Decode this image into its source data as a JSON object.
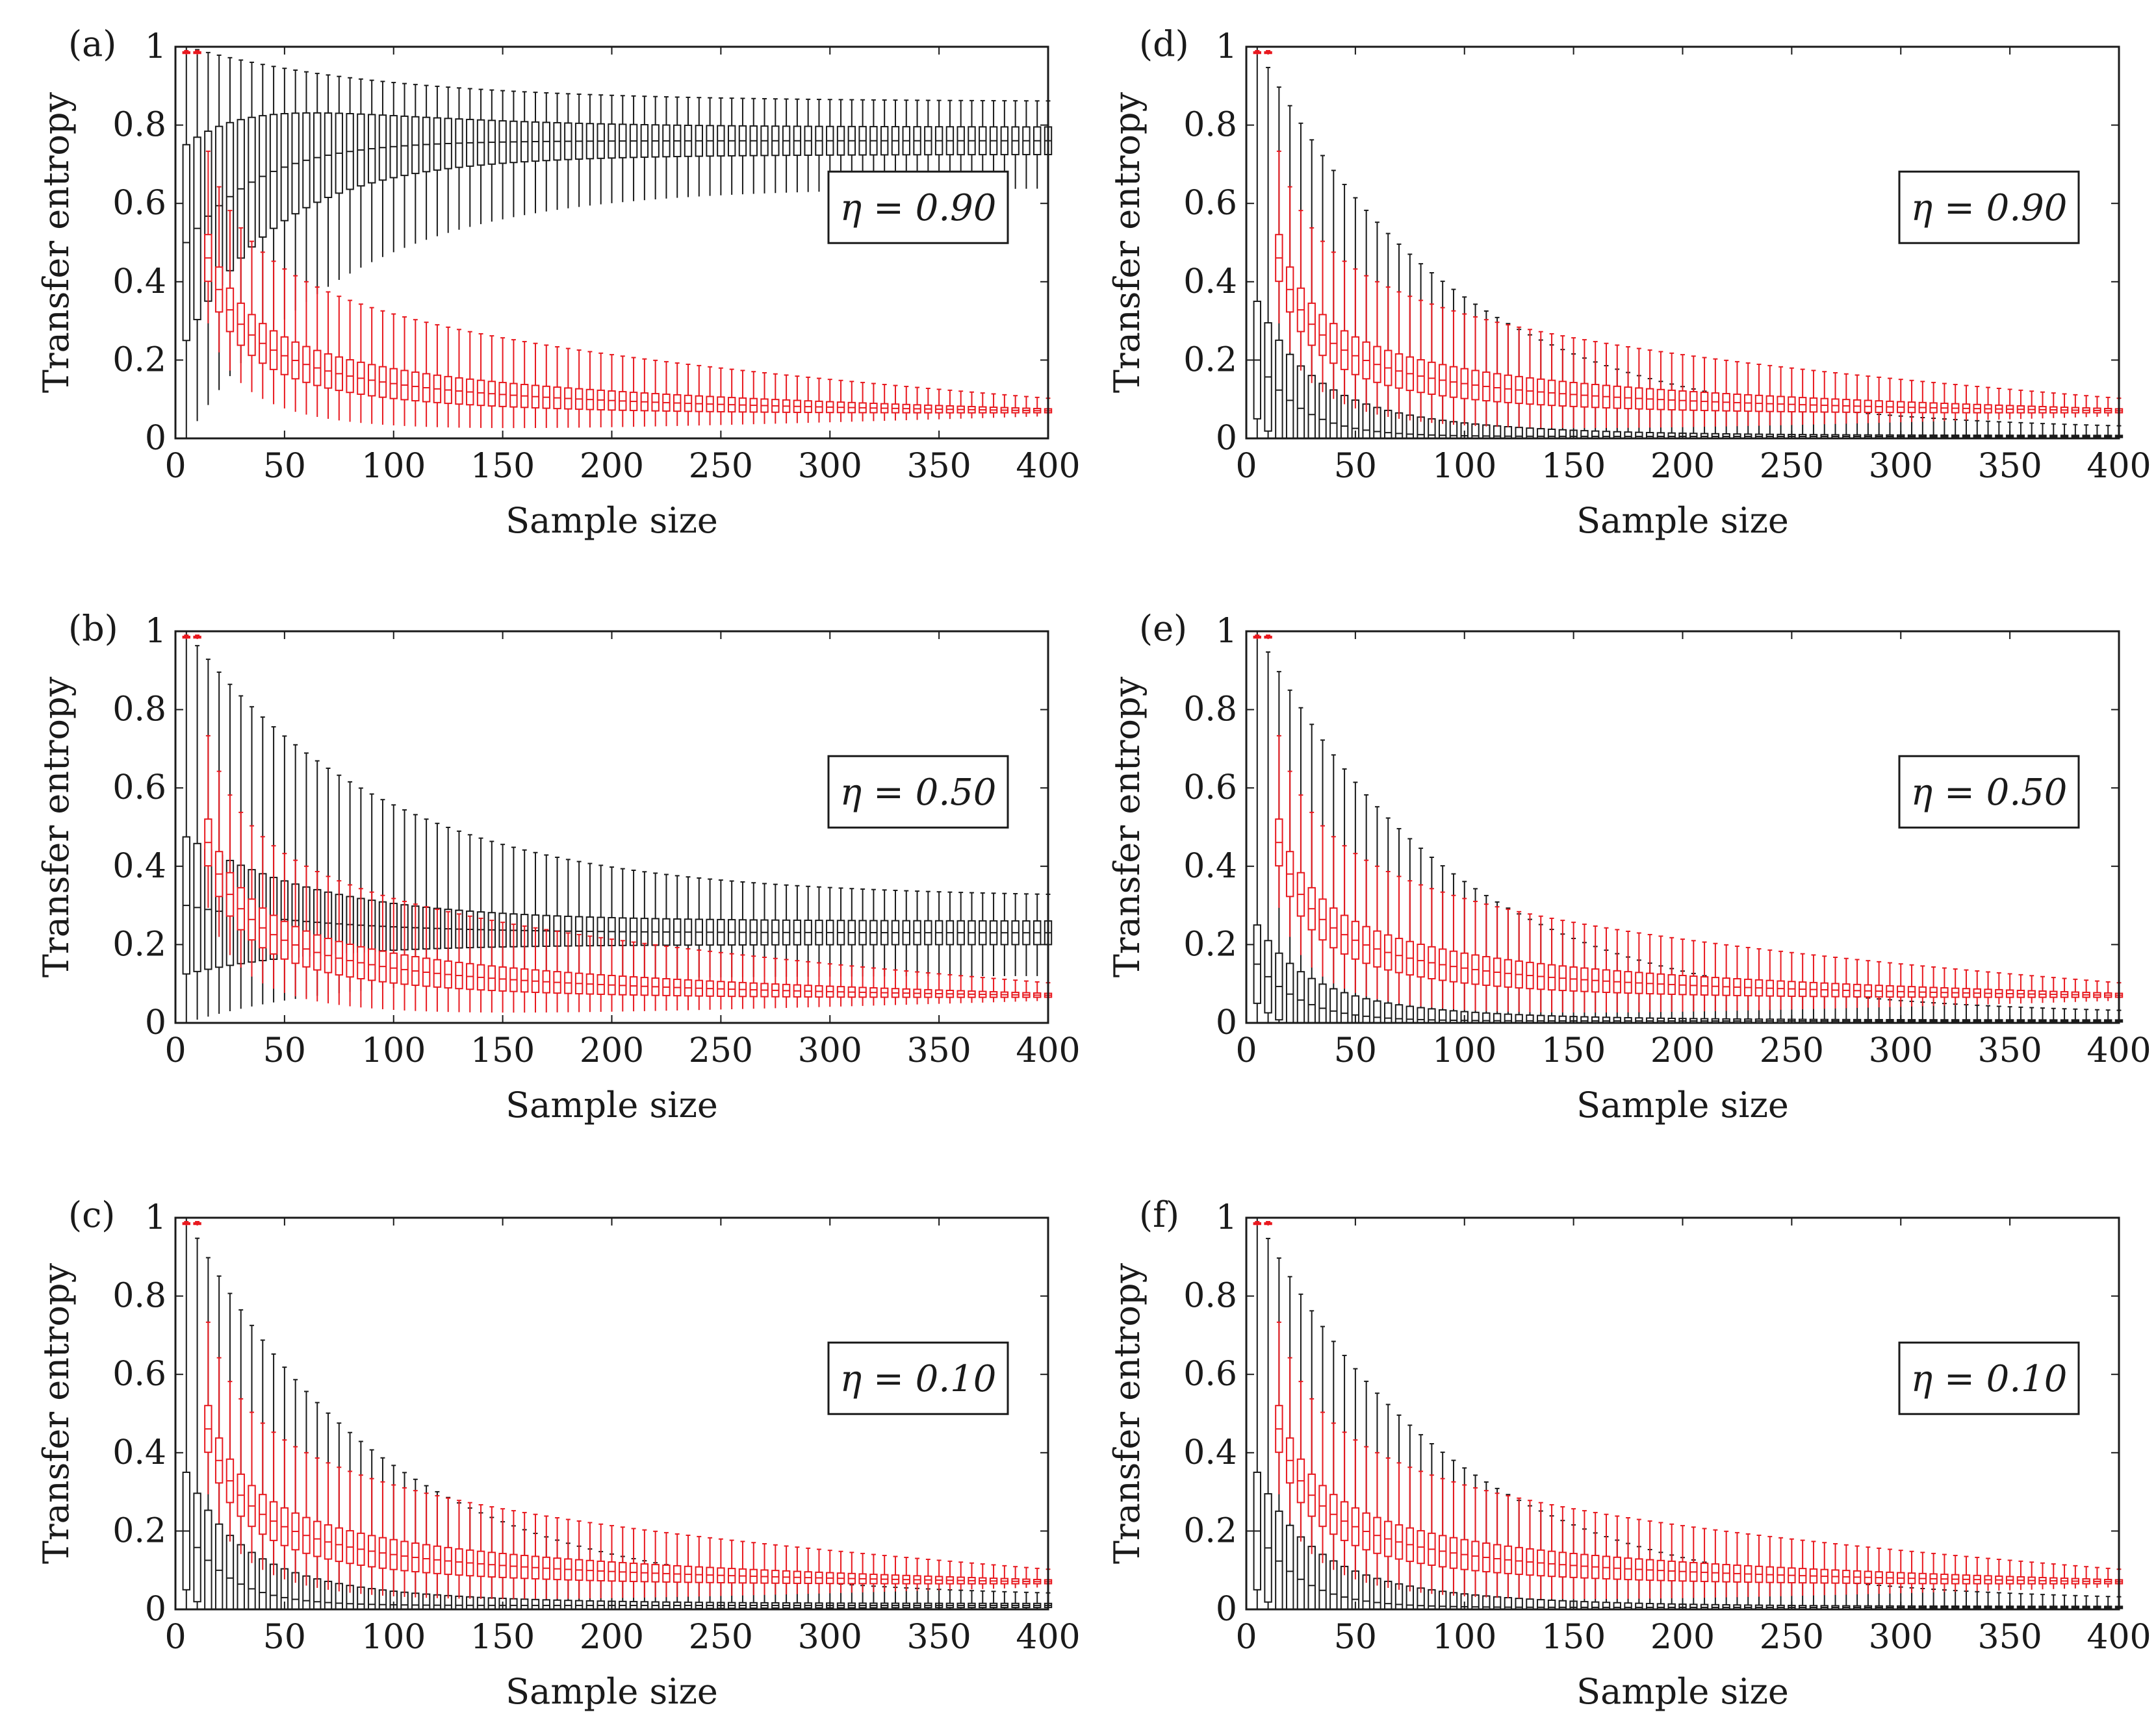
{
  "figure": {
    "colors": {
      "black_series": "#1a1a1a",
      "red_series": "#e8191f",
      "frame": "#1a1a1a"
    },
    "x_axis_label": "Sample size",
    "y_axis_label": "Transfer entropy",
    "x_tick_labels": [
      "0",
      "50",
      "100",
      "150",
      "200",
      "250",
      "300",
      "350",
      "400"
    ],
    "y_tick_labels": [
      "0",
      "0.2",
      "0.4",
      "0.6",
      "0.8",
      "1"
    ]
  },
  "chart_data": [
    {
      "type": "box",
      "panel": "(a)",
      "annotation": "η = 0.90",
      "eta": 0.9,
      "xlabel": "Sample size",
      "ylabel": "Transfer entropy",
      "xlim": [
        0,
        400
      ],
      "ylim": [
        0,
        1
      ],
      "x_sample_sizes": {
        "start": 5,
        "end": 400,
        "step": 5
      },
      "series": [
        {
          "name": "black",
          "color": "#1a1a1a",
          "median_start": 0.5,
          "median_asymptote": 0.76,
          "decay_rate": 0.15,
          "iqr_width_start": 0.5,
          "iqr_width_end": 0.07,
          "whisker_low_start": 0.0,
          "whisker_low_end": 0.64,
          "whisker_high_end": 0.86
        },
        {
          "name": "red",
          "color": "#e8191f",
          "median_start": 0.98,
          "median_end": 0.03,
          "iqr_width_start": 0.14,
          "iqr_width_end": 0.01,
          "whisker_high_start": 1.0,
          "whisker_high_end": 0.045
        }
      ]
    },
    {
      "type": "box",
      "panel": "(b)",
      "annotation": "η = 0.50",
      "eta": 0.5,
      "xlabel": "Sample size",
      "ylabel": "Transfer entropy",
      "xlim": [
        0,
        400
      ],
      "ylim": [
        0,
        1
      ],
      "x_sample_sizes": {
        "start": 5,
        "end": 400,
        "step": 5
      },
      "series": [
        {
          "name": "black",
          "color": "#1a1a1a",
          "median_start": 0.3,
          "median_asymptote": 0.23,
          "decay_rate": 0.08,
          "iqr_width_start": 0.35,
          "iqr_width_end": 0.06,
          "whisker_low_start": 0.0,
          "whisker_low_end": 0.12,
          "whisker_high_end": 0.32
        },
        {
          "name": "red",
          "color": "#e8191f",
          "median_start": 0.98,
          "median_end": 0.03,
          "iqr_width_start": 0.14,
          "iqr_width_end": 0.01,
          "whisker_high_start": 1.0,
          "whisker_high_end": 0.045
        }
      ]
    },
    {
      "type": "box",
      "panel": "(c)",
      "annotation": "η = 0.10",
      "eta": 0.1,
      "xlabel": "Sample size",
      "ylabel": "Transfer entropy",
      "xlim": [
        0,
        400
      ],
      "ylim": [
        0,
        1
      ],
      "x_sample_sizes": {
        "start": 5,
        "end": 400,
        "step": 5
      },
      "series": [
        {
          "name": "black",
          "color": "#1a1a1a",
          "median_start": 0.2,
          "median_asymptote": 0.01,
          "decay_rate": 0.25,
          "iqr_width_start": 0.3,
          "iqr_width_end": 0.01,
          "whisker_low_start": 0.0,
          "whisker_low_end": 0.0,
          "whisker_high_end": 0.03
        },
        {
          "name": "red",
          "color": "#e8191f",
          "median_start": 0.98,
          "median_end": 0.03,
          "iqr_width_start": 0.14,
          "iqr_width_end": 0.01,
          "whisker_high_start": 1.0,
          "whisker_high_end": 0.045
        }
      ]
    },
    {
      "type": "box",
      "panel": "(d)",
      "annotation": "η = 0.90",
      "eta": 0.9,
      "xlabel": "Sample size",
      "ylabel": "Transfer entropy",
      "xlim": [
        0,
        400
      ],
      "ylim": [
        0,
        1
      ],
      "x_sample_sizes": {
        "start": 5,
        "end": 400,
        "step": 5
      },
      "series": [
        {
          "name": "black",
          "color": "#1a1a1a",
          "median_start": 0.2,
          "median_asymptote": 0.005,
          "decay_rate": 0.25,
          "iqr_width_start": 0.3,
          "iqr_width_end": 0.005,
          "whisker_low_start": 0.0,
          "whisker_low_end": 0.0,
          "whisker_high_end": 0.02
        },
        {
          "name": "red",
          "color": "#e8191f",
          "median_start": 0.98,
          "median_end": 0.03,
          "iqr_width_start": 0.14,
          "iqr_width_end": 0.01,
          "whisker_high_start": 1.0,
          "whisker_high_end": 0.045
        }
      ]
    },
    {
      "type": "box",
      "panel": "(e)",
      "annotation": "η = 0.50",
      "eta": 0.5,
      "xlabel": "Sample size",
      "ylabel": "Transfer entropy",
      "xlim": [
        0,
        400
      ],
      "ylim": [
        0,
        1
      ],
      "x_sample_sizes": {
        "start": 5,
        "end": 400,
        "step": 5
      },
      "series": [
        {
          "name": "black",
          "color": "#1a1a1a",
          "median_start": 0.15,
          "median_asymptote": 0.005,
          "decay_rate": 0.25,
          "iqr_width_start": 0.2,
          "iqr_width_end": 0.005,
          "whisker_low_start": 0.0,
          "whisker_low_end": 0.0,
          "whisker_high_end": 0.02
        },
        {
          "name": "red",
          "color": "#e8191f",
          "median_start": 0.98,
          "median_end": 0.03,
          "iqr_width_start": 0.14,
          "iqr_width_end": 0.01,
          "whisker_high_start": 1.0,
          "whisker_high_end": 0.045
        }
      ]
    },
    {
      "type": "box",
      "panel": "(f)",
      "annotation": "η = 0.10",
      "eta": 0.1,
      "xlabel": "Sample size",
      "ylabel": "Transfer entropy",
      "xlim": [
        0,
        400
      ],
      "ylim": [
        0,
        1
      ],
      "x_sample_sizes": {
        "start": 5,
        "end": 400,
        "step": 5
      },
      "series": [
        {
          "name": "black",
          "color": "#1a1a1a",
          "median_start": 0.2,
          "median_asymptote": 0.005,
          "decay_rate": 0.25,
          "iqr_width_start": 0.3,
          "iqr_width_end": 0.005,
          "whisker_low_start": 0.0,
          "whisker_low_end": 0.0,
          "whisker_high_end": 0.02
        },
        {
          "name": "red",
          "color": "#e8191f",
          "median_start": 0.98,
          "median_end": 0.03,
          "iqr_width_start": 0.14,
          "iqr_width_end": 0.01,
          "whisker_high_start": 1.0,
          "whisker_high_end": 0.045
        }
      ]
    }
  ]
}
